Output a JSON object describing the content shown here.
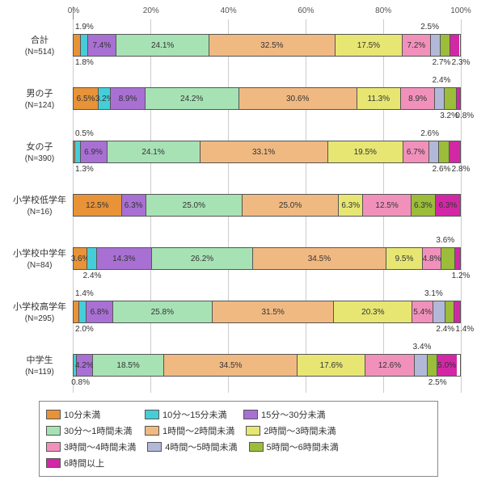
{
  "chart": {
    "type": "stacked-bar-horizontal",
    "axis": {
      "min": 0,
      "max": 100,
      "ticks": [
        0,
        20,
        40,
        60,
        80,
        100
      ],
      "suffix": "%"
    },
    "categories": [
      {
        "name": "10分未満",
        "color": "#e89338"
      },
      {
        "name": "10分～15分未満",
        "color": "#45ced8"
      },
      {
        "name": "15分～30分未満",
        "color": "#a970d4"
      },
      {
        "name": "30分～1時間未満",
        "color": "#a7e2b4"
      },
      {
        "name": "1時間～2時間未満",
        "color": "#f0b982"
      },
      {
        "name": "2時間～3時間未満",
        "color": "#e7e673"
      },
      {
        "name": "3時間～4時間未満",
        "color": "#f191bb"
      },
      {
        "name": "4時間～5時間未満",
        "color": "#b2b9d8"
      },
      {
        "name": "5時間～6時間未満",
        "color": "#9bbd3a"
      },
      {
        "name": "6時間以上",
        "color": "#d328a6"
      }
    ],
    "inline_show_threshold": 3.0,
    "rows": [
      {
        "label": "合計",
        "n": "(N=514)",
        "values": [
          1.9,
          1.8,
          7.4,
          24.1,
          32.5,
          17.5,
          7.2,
          2.5,
          2.7,
          2.3
        ],
        "callouts_top": [
          {
            "i": 0,
            "pct": 1.9,
            "offset": 3
          },
          {
            "i": 7,
            "pct": 2.5,
            "offset": 92
          }
        ],
        "callouts_bottom": [
          {
            "i": 1,
            "pct": 1.8,
            "offset": 3
          },
          {
            "i": 8,
            "pct": 2.7,
            "offset": 95
          },
          {
            "i": 9,
            "pct": 2.3,
            "offset": 100
          }
        ]
      },
      {
        "label": "男の子",
        "n": "(N=124)",
        "values": [
          6.5,
          3.2,
          8.9,
          24.2,
          30.6,
          11.3,
          8.9,
          2.4,
          3.2,
          0.8
        ],
        "callouts_top": [
          {
            "i": 7,
            "pct": 2.4,
            "offset": 95
          }
        ],
        "callouts_bottom": [
          {
            "i": 8,
            "pct": 3.2,
            "offset": 97
          },
          {
            "i": 9,
            "pct": 0.8,
            "offset": 101
          }
        ]
      },
      {
        "label": "女の子",
        "n": "(N=390)",
        "values": [
          0.5,
          1.3,
          6.9,
          24.1,
          33.1,
          19.5,
          6.7,
          2.6,
          2.6,
          2.8
        ],
        "callouts_top": [
          {
            "i": 0,
            "pct": 0.5,
            "offset": 3
          },
          {
            "i": 7,
            "pct": 2.6,
            "offset": 92
          }
        ],
        "callouts_bottom": [
          {
            "i": 1,
            "pct": 1.3,
            "offset": 3
          },
          {
            "i": 8,
            "pct": 2.6,
            "offset": 95
          },
          {
            "i": 9,
            "pct": 2.8,
            "offset": 100
          }
        ]
      },
      {
        "label": "小学校低学年",
        "n": "(N=16)",
        "values": [
          12.5,
          0,
          6.3,
          25.0,
          25.0,
          6.3,
          12.5,
          0,
          6.3,
          6.3
        ],
        "callouts_top": [],
        "callouts_bottom": []
      },
      {
        "label": "小学校中学年",
        "n": "(N=84)",
        "values": [
          3.6,
          2.4,
          14.3,
          26.2,
          34.5,
          9.5,
          4.8,
          0,
          3.6,
          1.2
        ],
        "callouts_top": [
          {
            "i": 8,
            "pct": 3.6,
            "offset": 96
          }
        ],
        "callouts_bottom": [
          {
            "i": 1,
            "pct": 2.4,
            "offset": 5
          },
          {
            "i": 9,
            "pct": 1.2,
            "offset": 100
          }
        ]
      },
      {
        "label": "小学校高学年",
        "n": "(N=295)",
        "values": [
          1.4,
          2.0,
          6.8,
          25.8,
          31.5,
          20.3,
          5.4,
          3.1,
          2.4,
          1.4
        ],
        "callouts_top": [
          {
            "i": 0,
            "pct": 1.4,
            "offset": 3
          },
          {
            "i": 7,
            "pct": 3.1,
            "offset": 93
          }
        ],
        "callouts_bottom": [
          {
            "i": 1,
            "pct": 2.0,
            "offset": 3
          },
          {
            "i": 8,
            "pct": 2.4,
            "offset": 96
          },
          {
            "i": 9,
            "pct": 1.4,
            "offset": 101
          }
        ]
      },
      {
        "label": "中学生",
        "n": "(N=119)",
        "values": [
          0,
          0.8,
          4.2,
          18.5,
          34.5,
          17.6,
          12.6,
          3.4,
          2.5,
          5.0
        ],
        "callouts_top": [
          {
            "i": 7,
            "pct": 3.4,
            "offset": 90
          }
        ],
        "callouts_bottom": [
          {
            "i": 1,
            "pct": 0.8,
            "offset": 2
          },
          {
            "i": 8,
            "pct": 2.5,
            "offset": 94
          }
        ]
      }
    ]
  }
}
